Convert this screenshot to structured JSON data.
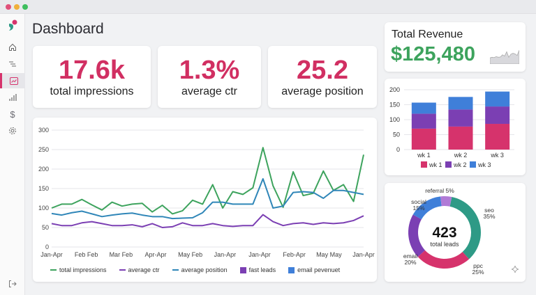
{
  "window": {
    "dots": [
      "#e0507a",
      "#f0b03a",
      "#3fbf5f"
    ]
  },
  "page": {
    "title": "Dashboard"
  },
  "sidebar": {
    "items": [
      {
        "name": "home"
      },
      {
        "name": "filters"
      },
      {
        "name": "analytics",
        "active": true
      },
      {
        "name": "reports"
      },
      {
        "name": "billing"
      },
      {
        "name": "settings"
      }
    ],
    "logout": "logout"
  },
  "kpis": [
    {
      "value": "17.6k",
      "label": "total impressions"
    },
    {
      "value": "1.3%",
      "label": "average ctr"
    },
    {
      "value": "25.2",
      "label": "average position"
    }
  ],
  "revenue": {
    "title": "Total Revenue",
    "value": "$125,480",
    "sparkline": [
      20,
      22,
      21,
      24,
      22,
      23,
      30,
      26,
      40,
      22,
      32,
      35,
      33,
      28,
      45
    ]
  },
  "colors": {
    "accent": "#d12f62",
    "green": "#3da35d",
    "purple": "#7b3fb3",
    "blue": "#2f86b8",
    "pink": "#d6336c",
    "bar_blue": "#3f7fd9",
    "teal": "#2e9a86",
    "lilac": "#b07ad6"
  },
  "chart_data": [
    {
      "type": "line",
      "title": "",
      "ylim": [
        0,
        300
      ],
      "yticks": [
        "0",
        "50",
        "100",
        "150",
        "200",
        "250",
        "300"
      ],
      "xticks": [
        "Jan-Apr",
        "Feb Feb",
        "Mar Feb",
        "Apr-Apr",
        "May Feb",
        "Jan-Apr",
        "Jan-Apr",
        "Feb-Apr",
        "May May",
        "Jan-Apr"
      ],
      "series": [
        {
          "name": "total impressions",
          "color": "#3da35d",
          "values": [
            100,
            110,
            110,
            122,
            108,
            95,
            115,
            105,
            110,
            112,
            90,
            107,
            85,
            93,
            120,
            110,
            160,
            100,
            142,
            135,
            152,
            255,
            157,
            102,
            193,
            132,
            138,
            195,
            145,
            160,
            117,
            237
          ]
        },
        {
          "name": "average ctr",
          "color": "#7b3fb3",
          "values": [
            60,
            55,
            55,
            62,
            65,
            60,
            55,
            55,
            57,
            52,
            60,
            50,
            52,
            62,
            55,
            55,
            60,
            55,
            53,
            55,
            55,
            83,
            65,
            55,
            60,
            62,
            58,
            62,
            60,
            62,
            68,
            80
          ]
        },
        {
          "name": "average position",
          "color": "#2f86b8",
          "values": [
            86,
            82,
            88,
            92,
            85,
            78,
            82,
            85,
            87,
            82,
            78,
            78,
            73,
            74,
            75,
            88,
            115,
            115,
            110,
            110,
            110,
            175,
            100,
            105,
            140,
            142,
            140,
            125,
            145,
            145,
            140,
            135
          ]
        }
      ],
      "legend": [
        {
          "label": "total impressions",
          "kind": "line",
          "color": "#3da35d"
        },
        {
          "label": "average ctr",
          "kind": "line",
          "color": "#7b3fb3"
        },
        {
          "label": "average position",
          "kind": "line",
          "color": "#2f86b8"
        },
        {
          "label": "fast leads",
          "kind": "square",
          "color": "#7b3fb3"
        },
        {
          "label": "email pevenuet",
          "kind": "square",
          "color": "#3f7fd9"
        }
      ]
    },
    {
      "type": "bar",
      "stacked": true,
      "categories": [
        "wk 1",
        "wk 2",
        "wk 3"
      ],
      "ylim": [
        0,
        200
      ],
      "yticks": [
        "0",
        "50",
        "100",
        "150",
        "200"
      ],
      "series": [
        {
          "name": "wk 1",
          "color": "#d6336c",
          "values": [
            70,
            77,
            86
          ]
        },
        {
          "name": "wk 2",
          "color": "#7b3fb3",
          "values": [
            50,
            57,
            58
          ]
        },
        {
          "name": "wk 3",
          "color": "#3f7fd9",
          "values": [
            37,
            42,
            50
          ]
        }
      ]
    },
    {
      "type": "pie",
      "donut": true,
      "center_value": "423",
      "center_label": "total leads",
      "slices": [
        {
          "label": "seo",
          "value": 35,
          "color": "#2e9a86"
        },
        {
          "label": "ppc",
          "value": 25,
          "color": "#d6336c"
        },
        {
          "label": "email",
          "value": 20,
          "color": "#7b3fb3"
        },
        {
          "label": "social",
          "value": 15,
          "color": "#3f7fd9"
        },
        {
          "label": "referral",
          "value": 5,
          "color": "#b07ad6"
        }
      ]
    }
  ]
}
